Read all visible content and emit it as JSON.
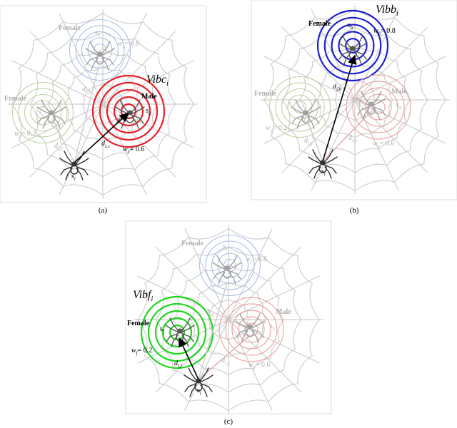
{
  "panels": [
    {
      "id": "a",
      "caption": "(a)",
      "vibration": {
        "label": "Vibc",
        "sub": "i",
        "color": "#e8202a"
      },
      "female_top": {
        "label": "Female",
        "node": "s",
        "node_sub": "z",
        "weight": "w",
        "weight_sub": "z",
        "weight_val": "= 0.8"
      },
      "female_left": {
        "label": "Female",
        "node": "s",
        "node_sub": "y",
        "weight": "w",
        "weight_sub": "y",
        "weight_val": "= 0.2"
      },
      "male": {
        "label": "Male",
        "node": "s",
        "node_sub": "c",
        "weight": "w",
        "weight_sub": "c",
        "weight_val": "= 0.6"
      },
      "self": {
        "node": "s",
        "node_sub": "i"
      },
      "distances": [
        {
          "text": "d",
          "sub": "i,z"
        },
        {
          "text": "d",
          "sub": "i,y"
        },
        {
          "text": "d",
          "sub": "i,c"
        }
      ]
    },
    {
      "id": "b",
      "caption": "(b)",
      "vibration": {
        "label": "Vibb",
        "sub": "i",
        "color": "#1a1ad6"
      },
      "female_top": {
        "label": "Female",
        "node": "s",
        "node_sub": "b",
        "weight": "w",
        "weight_sub": "b",
        "weight_val": "= 0.8"
      },
      "female_left": {
        "label": "Female",
        "node": "s",
        "node_sub": "y",
        "weight": "w",
        "weight_sub": "y",
        "weight_val": "= 0.2"
      },
      "male": {
        "label": "Male",
        "node": "s",
        "node_sub": "x",
        "weight": "w",
        "weight_sub": "x",
        "weight_val": "= 0.6"
      },
      "self": {
        "node": "s",
        "node_sub": "i"
      },
      "distances": [
        {
          "text": "d",
          "sub": "i,b"
        },
        {
          "text": "d",
          "sub": "i,y"
        },
        {
          "text": "d",
          "sub": "i,x"
        }
      ]
    },
    {
      "id": "c",
      "caption": "(c)",
      "vibration": {
        "label": "Vibf",
        "sub": "i",
        "color": "#1ed61e"
      },
      "female_top": {
        "label": "Female",
        "node": "s",
        "node_sub": "z",
        "weight": "w",
        "weight_sub": "z",
        "weight_val": "= 0.8"
      },
      "female_left": {
        "label": "Female",
        "node": "s",
        "node_sub": "f",
        "weight": "w",
        "weight_sub": "f",
        "weight_val": "= 0.2"
      },
      "male": {
        "label": "Male",
        "node": "s",
        "node_sub": "y",
        "weight": "w",
        "weight_sub": "y",
        "weight_val": "= 0.6"
      },
      "self": {
        "node": "s",
        "node_sub": "i"
      },
      "distances": [
        {
          "text": "d",
          "sub": "i,z"
        },
        {
          "text": "d",
          "sub": "i,f"
        },
        {
          "text": "d",
          "sub": "i,y"
        }
      ]
    }
  ]
}
